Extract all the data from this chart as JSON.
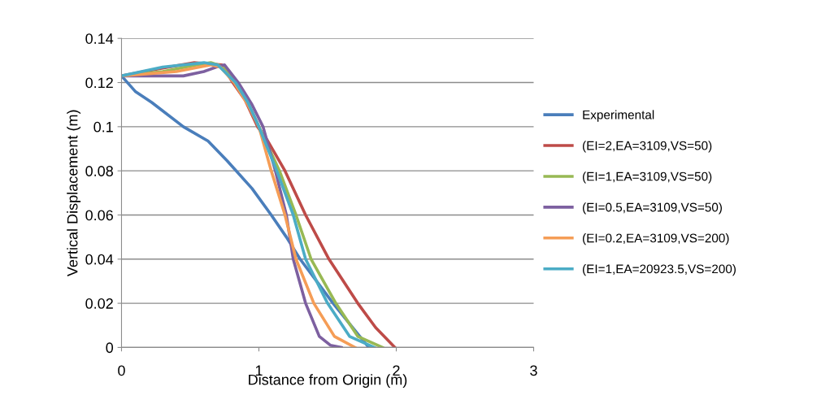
{
  "chart_data": {
    "type": "line",
    "xlabel": "Distance from Origin (m)",
    "ylabel": "Vertical Displacement (m)",
    "xlim": [
      0,
      3
    ],
    "xticks": [
      0,
      1,
      2,
      3
    ],
    "ylim": [
      0,
      0.14
    ],
    "yticks": [
      0,
      0.02,
      0.04,
      0.06,
      {
        "value": 0.08,
        "label": "0.08"
      },
      {
        "value": 0.1,
        "label": "0.1"
      },
      0.12,
      0.14
    ],
    "grid": "y",
    "legend": "right",
    "marker": "none",
    "line_style": "solid",
    "series": [
      {
        "name": "Experimental",
        "color": "#4a7ebb",
        "x": [
          0,
          0.1,
          0.22,
          0.45,
          0.63,
          0.77,
          0.95,
          1.09,
          1.2,
          1.3,
          1.42,
          1.54,
          1.67,
          1.8
        ],
        "values": [
          0.123,
          0.116,
          0.111,
          0.1,
          0.0935,
          0.0845,
          0.072,
          0.06,
          0.05,
          0.04,
          0.03,
          0.02,
          0.01,
          0
        ]
      },
      {
        "name": "(EI=2,EA=3109,VS=50)",
        "color": "#be4b48",
        "x": [
          0,
          0.25,
          0.53,
          0.73,
          0.81,
          0.9,
          0.99,
          1.06,
          1.19,
          1.34,
          1.51,
          1.72,
          1.85,
          1.99
        ],
        "values": [
          0.123,
          0.126,
          0.129,
          0.128,
          0.12,
          0.112,
          0.1,
          0.094,
          0.08,
          0.06,
          0.04,
          0.02,
          0.009,
          0
        ]
      },
      {
        "name": "(EI=1,EA=3109,VS=50)",
        "color": "#98b954",
        "x": [
          0,
          0.3,
          0.55,
          0.65,
          0.75,
          0.83,
          0.92,
          1.0,
          1.15,
          1.27,
          1.38,
          1.56,
          1.72,
          1.9
        ],
        "values": [
          0.123,
          0.125,
          0.128,
          0.129,
          0.127,
          0.12,
          0.111,
          0.1,
          0.08,
          0.06,
          0.04,
          0.02,
          0.005,
          0
        ]
      },
      {
        "name": "(EI=0.5,EA=3109,VS=50)",
        "color": "#7d60a0",
        "x": [
          0,
          0.2,
          0.45,
          0.6,
          0.69,
          0.75,
          0.85,
          0.95,
          1.03,
          1.12,
          1.2,
          1.25,
          1.34,
          1.44,
          1.52,
          1.6
        ],
        "values": [
          0.123,
          0.123,
          0.123,
          0.125,
          0.127,
          0.128,
          0.12,
          0.11,
          0.1,
          0.08,
          0.06,
          0.04,
          0.02,
          0.005,
          0.001,
          0
        ]
      },
      {
        "name": "(EI=0.2,EA=3109,VS=200)",
        "color": "#f59d56",
        "x": [
          0,
          0.4,
          0.65,
          0.72,
          0.82,
          0.92,
          1.0,
          1.09,
          1.19,
          1.27,
          1.4,
          1.55,
          1.7
        ],
        "values": [
          0.123,
          0.125,
          0.128,
          0.127,
          0.12,
          0.11,
          0.1,
          0.08,
          0.06,
          0.04,
          0.02,
          0.005,
          0
        ]
      },
      {
        "name": "(EI=1,EA=20923.5,VS=200)",
        "color": "#4bacc6",
        "x": [
          0,
          0.3,
          0.6,
          0.7,
          0.83,
          0.92,
          1.0,
          1.13,
          1.25,
          1.34,
          1.5,
          1.66,
          1.84
        ],
        "values": [
          0.123,
          0.127,
          0.129,
          0.128,
          0.12,
          0.111,
          0.1,
          0.08,
          0.06,
          0.04,
          0.02,
          0.005,
          0
        ]
      }
    ]
  }
}
